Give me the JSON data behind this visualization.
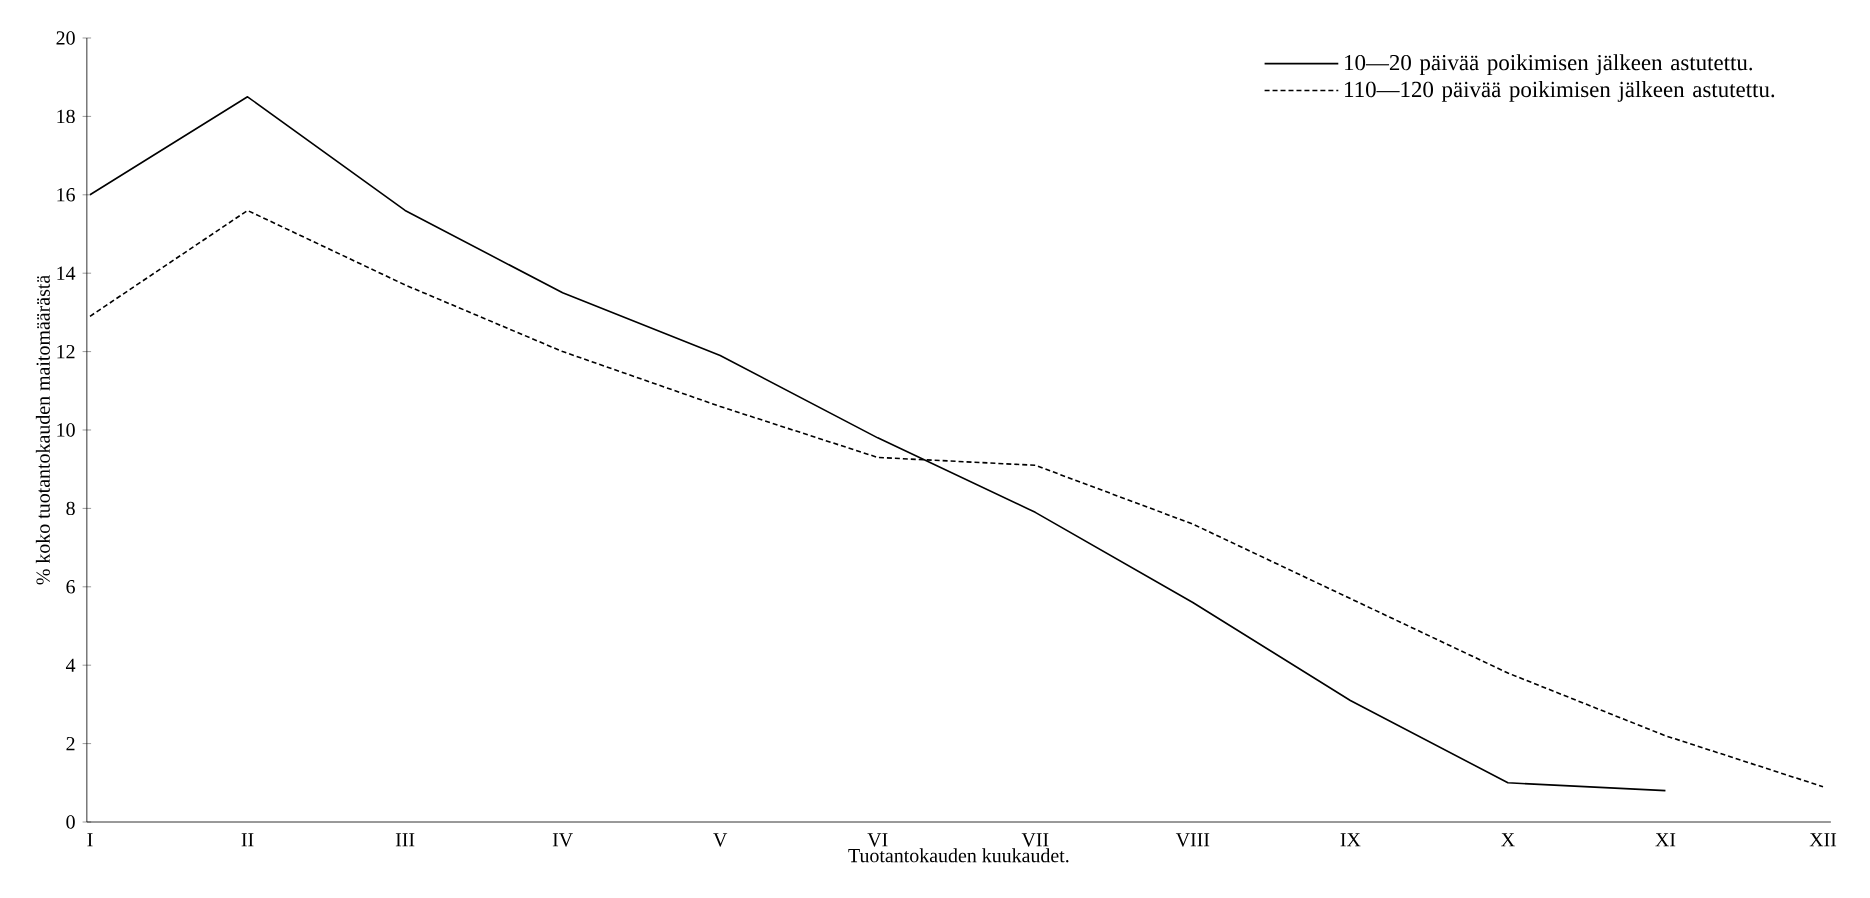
{
  "chart_data": {
    "type": "line",
    "xlabel": "Tuotantokauden kuukaudet.",
    "ylabel": "% koko tuotantokauden maitomäärästä",
    "categories": [
      "I",
      "II",
      "III",
      "IV",
      "V",
      "VI",
      "VII",
      "VIII",
      "IX",
      "X",
      "XI",
      "XII"
    ],
    "ylim": [
      0,
      20
    ],
    "yticks": [
      0,
      2,
      4,
      6,
      8,
      10,
      12,
      14,
      16,
      18,
      20
    ],
    "legend": "top right",
    "series": [
      {
        "name": "10—20 päivää poikimisen jälkeen astutettu.",
        "color": "#000000",
        "line_style": "solid",
        "values": [
          16.0,
          18.5,
          15.6,
          13.5,
          11.9,
          9.8,
          7.9,
          5.6,
          3.1,
          1.0,
          0.8,
          null
        ]
      },
      {
        "name": "110—120 päivää poikimisen jälkeen astutettu.",
        "color": "#000000",
        "line_style": "dashed",
        "values": [
          12.9,
          15.6,
          13.7,
          12.0,
          10.6,
          9.3,
          9.1,
          7.6,
          5.7,
          3.8,
          2.2,
          0.9
        ]
      }
    ]
  }
}
